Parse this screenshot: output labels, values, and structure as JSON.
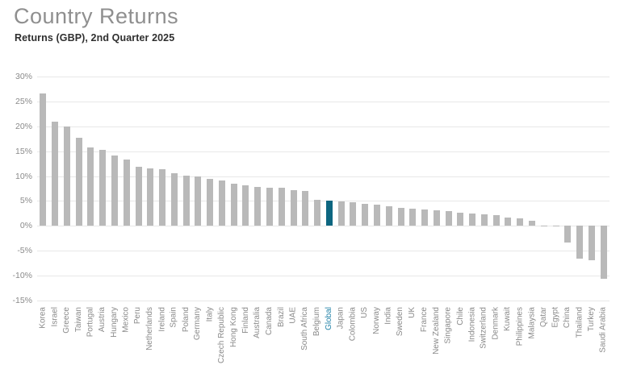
{
  "header": {
    "title": "Country Returns",
    "subtitle": "Returns (GBP), 2nd Quarter 2025"
  },
  "colors": {
    "bar": "#b9b9b9",
    "highlight_bar": "#0d6680",
    "highlight_label": "#2383a8",
    "axis_text": "#8a8a8a",
    "gridline": "#e8e8e8"
  },
  "chart_data": {
    "type": "bar",
    "title": "Country Returns",
    "subtitle": "Returns (GBP), 2nd Quarter 2025",
    "xlabel": "",
    "ylabel": "",
    "ylim": [
      -15,
      30
    ],
    "ytick_step": 5,
    "ytick_labels": [
      "30%",
      "25%",
      "20%",
      "15%",
      "10%",
      "5%",
      "0%",
      "-5%",
      "-10%",
      "-15%"
    ],
    "grid": true,
    "legend": false,
    "highlight_category": "Global",
    "categories": [
      "Korea",
      "Israel",
      "Greece",
      "Taiwan",
      "Portugal",
      "Austria",
      "Hungary",
      "Mexico",
      "Peru",
      "Netherlands",
      "Ireland",
      "Spain",
      "Poland",
      "Germany",
      "Italy",
      "Czech Republic",
      "Hong Kong",
      "Finland",
      "Australia",
      "Canada",
      "Brazil",
      "UAE",
      "South Africa",
      "Belgium",
      "Global",
      "Japan",
      "Colombia",
      "US",
      "Norway",
      "India",
      "Sweden",
      "UK",
      "France",
      "New Zealand",
      "Singapore",
      "Chile",
      "Indonesia",
      "Switzerland",
      "Denmark",
      "Kuwait",
      "Philippines",
      "Malaysia",
      "Qatar",
      "Egypt",
      "China",
      "Thailand",
      "Turkey",
      "Saudi Arabia"
    ],
    "values": [
      26.6,
      20.9,
      20.0,
      17.7,
      15.8,
      15.3,
      14.2,
      13.4,
      11.9,
      11.6,
      11.4,
      10.5,
      10.1,
      9.9,
      9.4,
      9.2,
      8.4,
      8.1,
      7.9,
      7.7,
      7.6,
      7.2,
      7.0,
      5.3,
      5.0,
      4.9,
      4.8,
      4.4,
      4.2,
      3.9,
      3.7,
      3.5,
      3.3,
      3.1,
      2.9,
      2.7,
      2.5,
      2.4,
      2.2,
      1.7,
      1.5,
      1.0,
      0.1,
      -0.1,
      -3.4,
      -6.6,
      -6.9,
      -10.7
    ]
  }
}
